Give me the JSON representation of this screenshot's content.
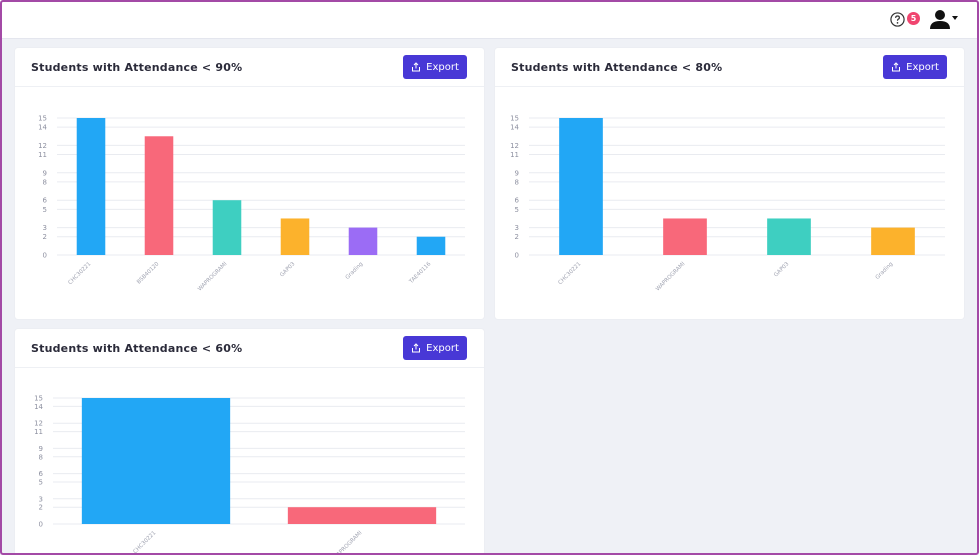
{
  "header": {
    "help_icon": "question-circle-icon",
    "notification_count": "5",
    "user_icon": "user-icon"
  },
  "cards": [
    {
      "title": "Students with Attendance < 90%",
      "export_label": "Export"
    },
    {
      "title": "Students with Attendance < 80%",
      "export_label": "Export"
    },
    {
      "title": "Students with Attendance < 60%",
      "export_label": "Export"
    }
  ],
  "chart_data": [
    {
      "type": "bar",
      "title": "Students with Attendance < 90%",
      "categories": [
        "CHC30221",
        "BSB40120",
        "WAPROGRAMI",
        "GAP03",
        "Grading",
        "TAE40116"
      ],
      "values": [
        15,
        13,
        6,
        4,
        3,
        2
      ],
      "colors": [
        "#22a7f5",
        "#f8687a",
        "#3ecfc1",
        "#fcb22c",
        "#9b6cf5",
        "#22a7f5"
      ],
      "yticks": [
        0,
        2,
        3,
        5,
        6,
        8,
        9,
        11,
        12,
        14,
        15
      ],
      "ylim": [
        0,
        15
      ],
      "grid": true
    },
    {
      "type": "bar",
      "title": "Students with Attendance < 80%",
      "categories": [
        "CHC30221",
        "WAPROGRAMI",
        "GAP03",
        "Grading"
      ],
      "values": [
        15,
        4,
        4,
        3
      ],
      "colors": [
        "#22a7f5",
        "#f8687a",
        "#3ecfc1",
        "#fcb22c"
      ],
      "yticks": [
        0,
        2,
        3,
        5,
        6,
        8,
        9,
        11,
        12,
        14,
        15
      ],
      "ylim": [
        0,
        15
      ],
      "grid": true
    },
    {
      "type": "bar",
      "title": "Students with Attendance < 60%",
      "categories": [
        "CHC30221",
        "WAPROGRAMI"
      ],
      "values": [
        15,
        2
      ],
      "colors": [
        "#22a7f5",
        "#f8687a"
      ],
      "yticks": [
        0,
        2,
        3,
        5,
        6,
        8,
        9,
        11,
        12,
        14,
        15
      ],
      "ylim": [
        0,
        15
      ],
      "grid": true
    }
  ]
}
